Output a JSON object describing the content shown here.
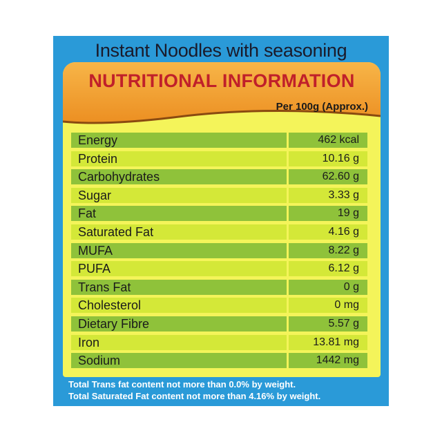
{
  "product_title": "Instant Noodles with seasoning",
  "header": {
    "title": "NUTRITIONAL INFORMATION",
    "serving": "Per 100g (Approx.)"
  },
  "nutrients": [
    {
      "name": "Energy",
      "value": "462 kcal"
    },
    {
      "name": "Protein",
      "value": "10.16 g"
    },
    {
      "name": "Carbohydrates",
      "value": "62.60 g"
    },
    {
      "name": "Sugar",
      "value": "3.33 g"
    },
    {
      "name": "Fat",
      "value": "19 g"
    },
    {
      "name": "Saturated Fat",
      "value": "4.16 g"
    },
    {
      "name": "MUFA",
      "value": "8.22 g"
    },
    {
      "name": "PUFA",
      "value": "6.12 g"
    },
    {
      "name": "Trans Fat",
      "value": "0 g"
    },
    {
      "name": "Cholesterol",
      "value": "0 mg"
    },
    {
      "name": "Dietary Fibre",
      "value": "5.57 g"
    },
    {
      "name": "Iron",
      "value": "13.81 mg"
    },
    {
      "name": "Sodium",
      "value": "1442 mg"
    }
  ],
  "footnotes": [
    "Total Trans fat content not more than 0.0% by weight.",
    "Total Saturated Fat content not more than 4.16% by weight."
  ],
  "colors": {
    "panel_blue": "#2a9ad8",
    "inner_yellow": "#f4f45a",
    "header_orange": "#f0a030",
    "title_red": "#c0202a",
    "row_dark_green": "#8fc23a",
    "row_light_green": "#d4e838"
  }
}
